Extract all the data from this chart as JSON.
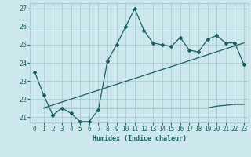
{
  "title": "",
  "xlabel": "Humidex (Indice chaleur)",
  "ylabel": "",
  "xlim": [
    -0.5,
    23.5
  ],
  "ylim": [
    20.7,
    27.3
  ],
  "yticks": [
    21,
    22,
    23,
    24,
    25,
    26,
    27
  ],
  "xticks": [
    0,
    1,
    2,
    3,
    4,
    5,
    6,
    7,
    8,
    9,
    10,
    11,
    12,
    13,
    14,
    15,
    16,
    17,
    18,
    19,
    20,
    21,
    22,
    23
  ],
  "bg_color": "#cce8ec",
  "grid_color": "#aaccd4",
  "line_color": "#1a6060",
  "line1_x": [
    0,
    1,
    2,
    3,
    4,
    5,
    6,
    7,
    8,
    9,
    10,
    11,
    12,
    13,
    14,
    15,
    16,
    17,
    18,
    19,
    20,
    21,
    22,
    23
  ],
  "line1_y": [
    23.5,
    22.2,
    21.1,
    21.5,
    21.2,
    20.75,
    20.75,
    21.4,
    24.1,
    25.0,
    26.0,
    27.0,
    25.8,
    25.1,
    25.0,
    24.9,
    25.4,
    24.7,
    24.6,
    25.3,
    25.5,
    25.1,
    25.1,
    23.9
  ],
  "line2_x": [
    1,
    3,
    4,
    5,
    6,
    7,
    8,
    9,
    10,
    11,
    12,
    13,
    14,
    15,
    16,
    17,
    18,
    19,
    20,
    21,
    22,
    23
  ],
  "line2_y": [
    21.5,
    21.5,
    21.5,
    21.5,
    21.5,
    21.5,
    21.5,
    21.5,
    21.5,
    21.5,
    21.5,
    21.5,
    21.5,
    21.5,
    21.5,
    21.5,
    21.5,
    21.5,
    21.6,
    21.65,
    21.7,
    21.7
  ],
  "line3_x": [
    1,
    23
  ],
  "line3_y": [
    21.5,
    25.1
  ]
}
